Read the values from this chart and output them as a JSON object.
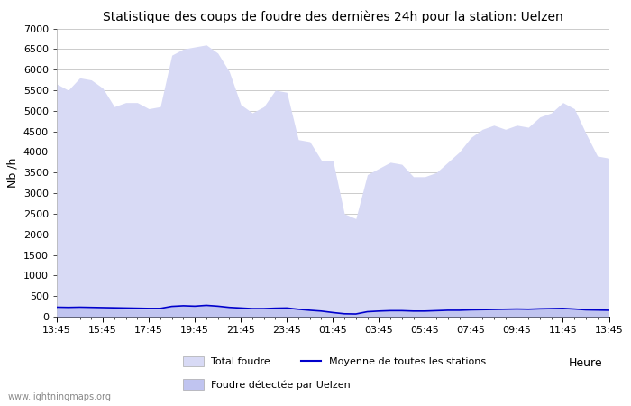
{
  "title": "Statistique des coups de foudre des dernières 24h pour la station: Uelzen",
  "ylabel": "Nb /h",
  "xlabel": "Heure",
  "watermark": "www.lightningmaps.org",
  "ylim": [
    0,
    7000
  ],
  "yticks": [
    0,
    500,
    1000,
    1500,
    2000,
    2500,
    3000,
    3500,
    4000,
    4500,
    5000,
    5500,
    6000,
    6500,
    7000
  ],
  "xtick_labels": [
    "13:45",
    "15:45",
    "17:45",
    "19:45",
    "21:45",
    "23:45",
    "01:45",
    "03:45",
    "05:45",
    "07:45",
    "09:45",
    "11:45",
    "13:45"
  ],
  "bg_color": "#ffffff",
  "plot_bg_color": "#ffffff",
  "grid_color": "#cccccc",
  "fill_total_color": "#d8daf5",
  "fill_uelzen_color": "#c0c4f0",
  "line_moyenne_color": "#0000cc",
  "title_fontsize": 10,
  "total_foudre": [
    5650,
    5500,
    5800,
    5750,
    5550,
    5100,
    5200,
    5200,
    5050,
    5100,
    6350,
    6500,
    6550,
    6600,
    6400,
    5950,
    5150,
    4950,
    5100,
    5500,
    5450,
    4300,
    4250,
    3800,
    3800,
    2500,
    2380,
    3450,
    3600,
    3750,
    3700,
    3400,
    3400,
    3500,
    3750,
    4000,
    4350,
    4550,
    4650,
    4550,
    4650,
    4600,
    4850,
    4950,
    5200,
    5050,
    4450,
    3900,
    3850
  ],
  "foudre_uelzen": [
    200,
    200,
    200,
    200,
    200,
    200,
    180,
    180,
    180,
    180,
    250,
    260,
    250,
    280,
    250,
    220,
    200,
    190,
    190,
    200,
    200,
    180,
    150,
    130,
    100,
    70,
    65,
    120,
    130,
    140,
    140,
    130,
    130,
    140,
    150,
    150,
    160,
    165,
    170,
    175,
    180,
    175,
    185,
    190,
    195,
    180,
    160,
    155,
    150
  ],
  "moyenne": [
    230,
    225,
    230,
    225,
    220,
    215,
    210,
    205,
    200,
    200,
    250,
    265,
    255,
    275,
    255,
    225,
    210,
    195,
    195,
    205,
    210,
    180,
    155,
    135,
    100,
    70,
    65,
    120,
    135,
    145,
    145,
    135,
    135,
    145,
    155,
    155,
    165,
    170,
    175,
    180,
    185,
    180,
    190,
    195,
    200,
    185,
    165,
    160,
    155
  ],
  "n_minor_ticks": 96
}
